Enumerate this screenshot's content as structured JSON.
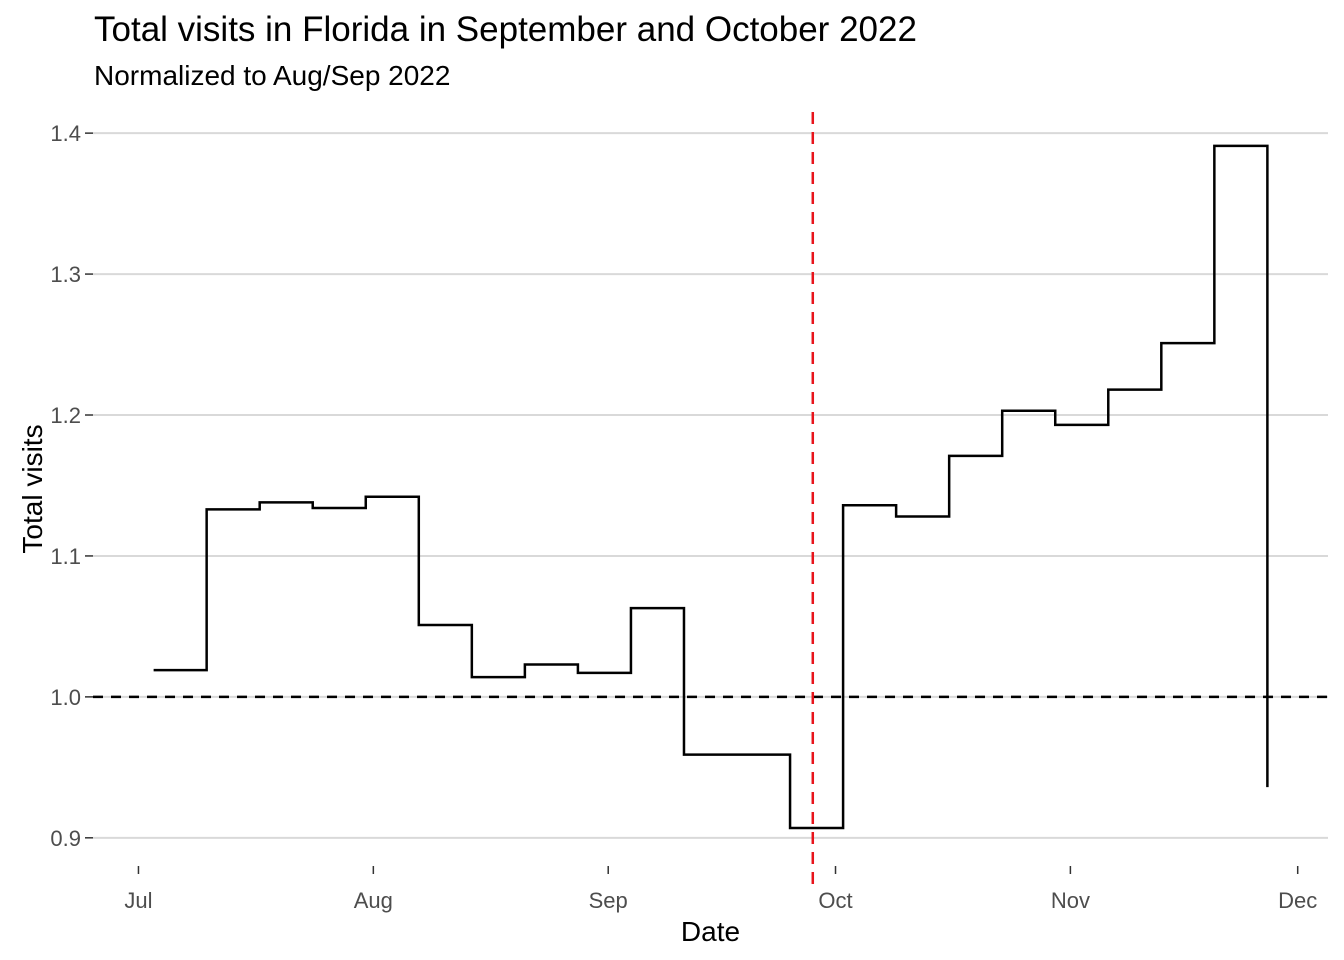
{
  "chart_data": {
    "type": "line",
    "step": true,
    "title": "Total visits in Florida in September and October 2022",
    "subtitle": "Normalized to Aug/Sep 2022",
    "xlabel": "Date",
    "ylabel": "Total visits",
    "x_ticks": [
      {
        "date": "2022-07-01",
        "label": "Jul"
      },
      {
        "date": "2022-08-01",
        "label": "Aug"
      },
      {
        "date": "2022-09-01",
        "label": "Sep"
      },
      {
        "date": "2022-10-01",
        "label": "Oct"
      },
      {
        "date": "2022-11-01",
        "label": "Nov"
      },
      {
        "date": "2022-12-01",
        "label": "Dec"
      }
    ],
    "y_ticks": [
      0.9,
      1.0,
      1.1,
      1.2,
      1.3,
      1.4
    ],
    "xlim": [
      "2022-06-25",
      "2022-12-05"
    ],
    "ylim": [
      0.88,
      1.415
    ],
    "grid": {
      "horizontal": true,
      "vertical": false
    },
    "series": [
      {
        "color": "#000000",
        "points": [
          {
            "x": "2022-07-03",
            "y": 1.019
          },
          {
            "x": "2022-07-10",
            "y": 1.133
          },
          {
            "x": "2022-07-17",
            "y": 1.138
          },
          {
            "x": "2022-07-24",
            "y": 1.134
          },
          {
            "x": "2022-07-31",
            "y": 1.142
          },
          {
            "x": "2022-08-07",
            "y": 1.051
          },
          {
            "x": "2022-08-14",
            "y": 1.014
          },
          {
            "x": "2022-08-21",
            "y": 1.023
          },
          {
            "x": "2022-08-28",
            "y": 1.017
          },
          {
            "x": "2022-09-04",
            "y": 1.063
          },
          {
            "x": "2022-09-11",
            "y": 0.959
          },
          {
            "x": "2022-09-25",
            "y": 0.907
          },
          {
            "x": "2022-10-02",
            "y": 1.136
          },
          {
            "x": "2022-10-09",
            "y": 1.128
          },
          {
            "x": "2022-10-16",
            "y": 1.171
          },
          {
            "x": "2022-10-23",
            "y": 1.203
          },
          {
            "x": "2022-10-30",
            "y": 1.193
          },
          {
            "x": "2022-11-06",
            "y": 1.218
          },
          {
            "x": "2022-11-13",
            "y": 1.251
          },
          {
            "x": "2022-11-20",
            "y": 1.391
          },
          {
            "x": "2022-11-27",
            "y": 0.936
          }
        ]
      }
    ],
    "reference_lines": [
      {
        "orientation": "horizontal",
        "value": 1.0,
        "color": "#000000",
        "style": "dashed"
      },
      {
        "orientation": "vertical",
        "value": "2022-09-28",
        "color": "#e8141b",
        "style": "dashed"
      }
    ]
  }
}
